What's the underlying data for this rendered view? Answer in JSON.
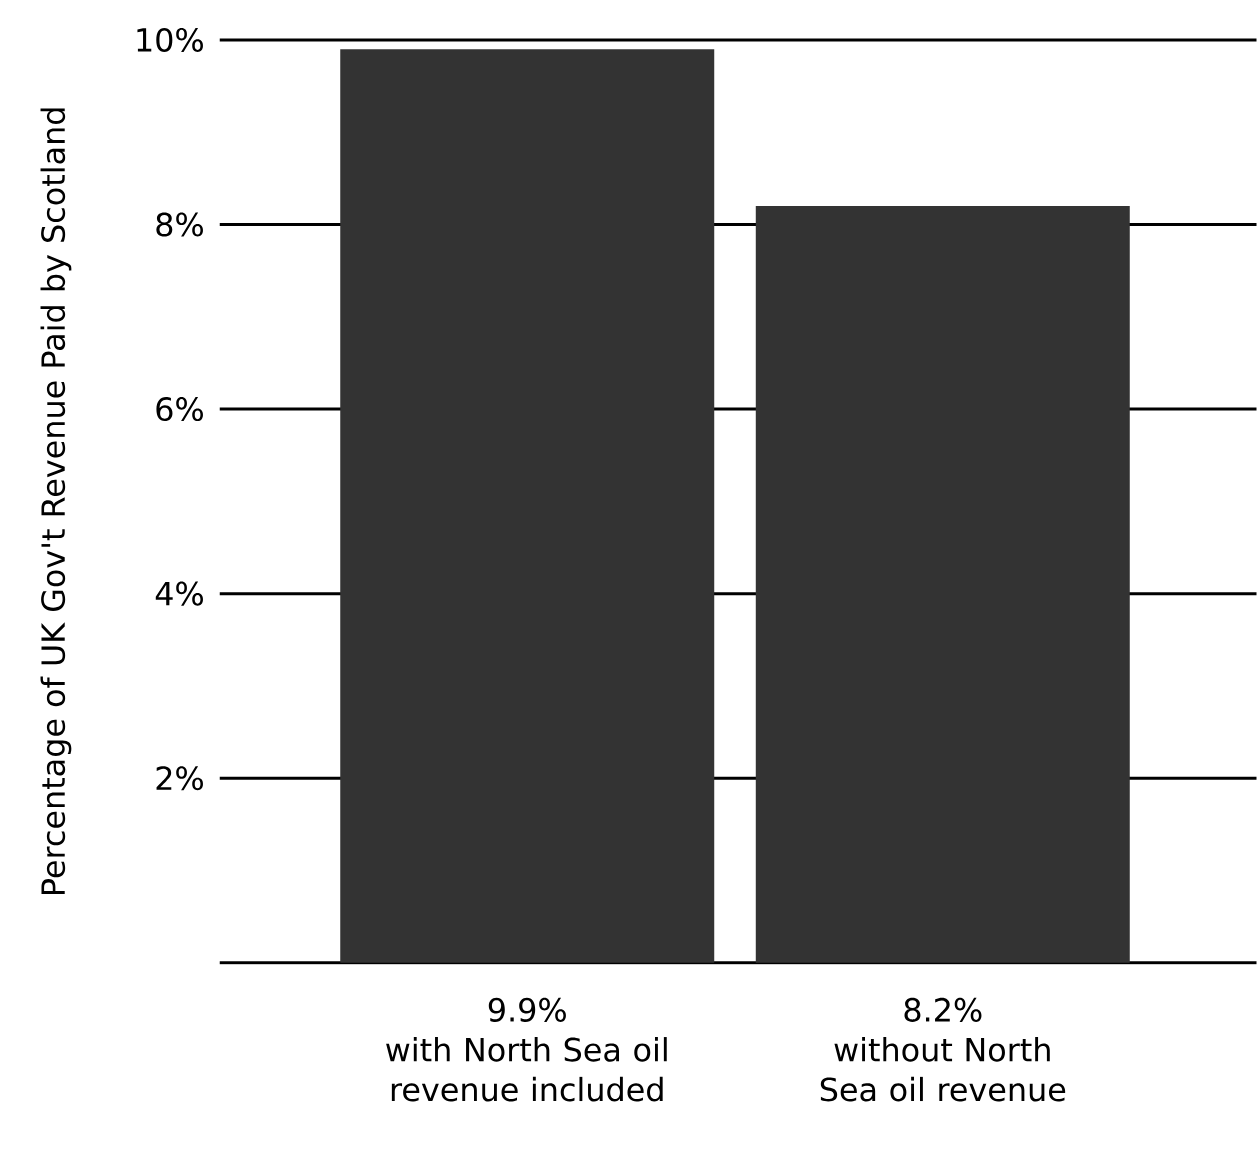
{
  "chart_data": {
    "type": "bar",
    "ylabel": "Percentage of UK Gov't Revenue Paid by Scotland",
    "categories": [
      "with North Sea oil revenue included",
      "without North Sea oil revenue"
    ],
    "values": [
      9.9,
      8.2
    ],
    "value_labels": [
      "9.9%",
      "8.2%"
    ],
    "color": "#333333",
    "ylim": [
      0,
      10
    ],
    "yticks": [
      {
        "value": 2,
        "label": "2%"
      },
      {
        "value": 4,
        "label": "4%"
      },
      {
        "value": 6,
        "label": "6%"
      },
      {
        "value": 8,
        "label": "8%"
      },
      {
        "value": 10,
        "label": "10%"
      }
    ],
    "grid": "y"
  }
}
